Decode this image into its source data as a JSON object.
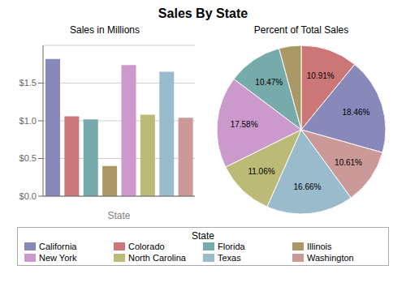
{
  "title": "Sales By State",
  "chart_data": [
    {
      "type": "bar",
      "title": "Sales in Millions",
      "x_label": "State",
      "categories": [
        "California",
        "Colorado",
        "Florida",
        "Illinois",
        "New York",
        "North Carolina",
        "Texas",
        "Washington"
      ],
      "values": [
        1.82,
        1.06,
        1.02,
        0.4,
        1.74,
        1.08,
        1.65,
        1.04
      ],
      "colors": [
        "#8888bb",
        "#cc7777",
        "#77aaaa",
        "#aa9966",
        "#cc99cc",
        "#bbbb77",
        "#99bbcc",
        "#cc9999"
      ],
      "ylim": [
        0,
        2.0
      ],
      "yticks": [
        {
          "value": 0.0,
          "label": "$0.0"
        },
        {
          "value": 0.5,
          "label": "$0.5"
        },
        {
          "value": 1.0,
          "label": "$1.0"
        },
        {
          "value": 1.5,
          "label": "$1.5"
        }
      ],
      "grid": true,
      "tick_labels": "y",
      "legend": "bottom"
    },
    {
      "type": "pie",
      "title": "Percent of Total Sales",
      "values": [
        10.91,
        18.46,
        10.61,
        16.66,
        11.06,
        17.58,
        10.47,
        4.25
      ],
      "value_labels": [
        "10.91%",
        "18.46%",
        "10.61%",
        "16.66%",
        "11.06%",
        "17.58%",
        "10.47%",
        null
      ],
      "colors": [
        "#cc7777",
        "#8888bb",
        "#cc9999",
        "#99bbcc",
        "#bbbb77",
        "#cc99cc",
        "#77aaaa",
        "#aa9966"
      ],
      "data_labels": true
    }
  ]
}
